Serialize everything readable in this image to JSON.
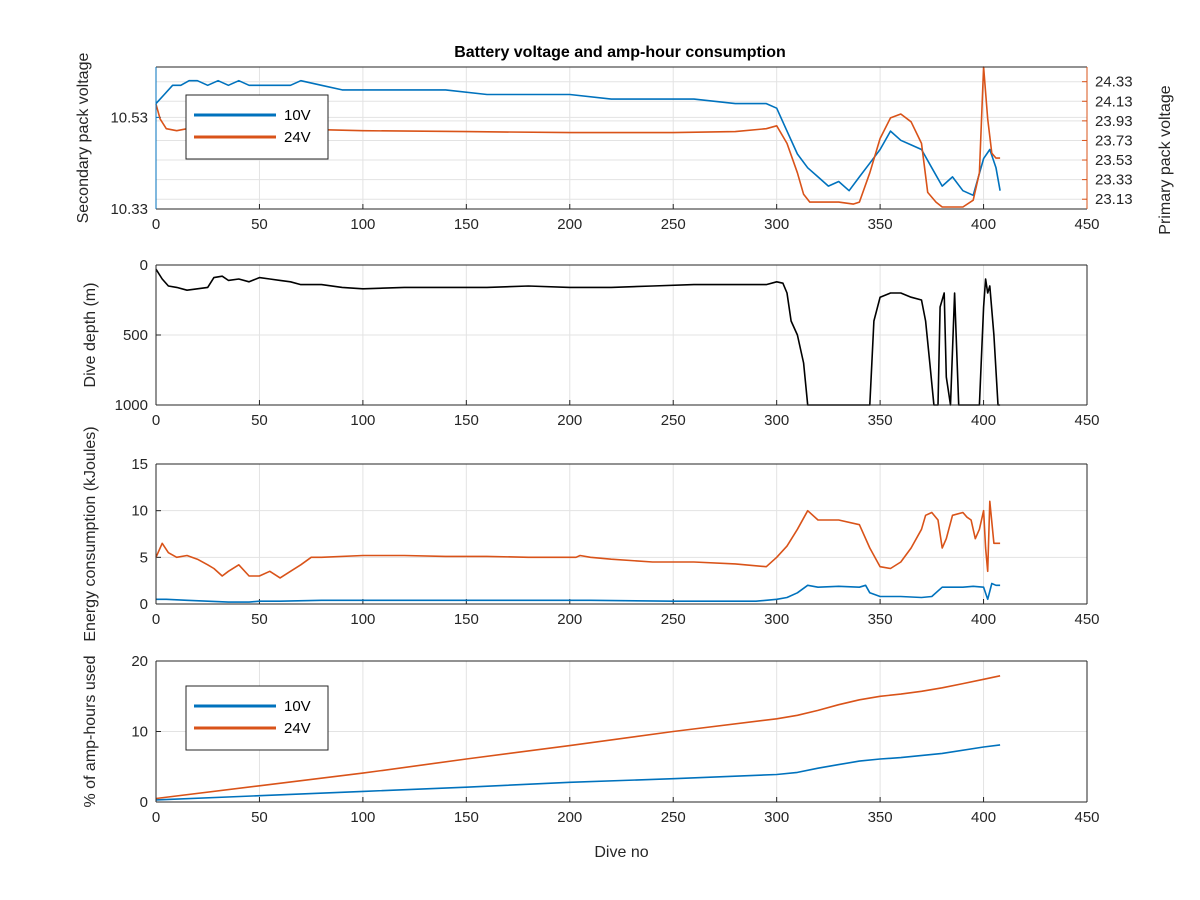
{
  "figure": {
    "title": "Battery voltage and amp-hour consumption",
    "colors": {
      "blue": "#0072BD",
      "orange": "#D95319",
      "black": "#000000",
      "grid": "#e3e3e3",
      "axis": "#262626"
    }
  },
  "chart_data": [
    {
      "type": "line",
      "title": "Battery voltage and amp-hour consumption",
      "xlabel": "",
      "ylabel": "Secondary pack voltage",
      "ylabel_right": "Primary pack voltage",
      "xlim": [
        0,
        450
      ],
      "ylim": [
        10.33,
        10.64
      ],
      "ylim_right": [
        23.03,
        24.48
      ],
      "x_ticks": [
        "0",
        "50",
        "100",
        "150",
        "200",
        "250",
        "300",
        "350",
        "400",
        "450"
      ],
      "y_ticks": [
        "10.33",
        "10.53"
      ],
      "y_ticks_right": [
        "23.13",
        "23.33",
        "23.53",
        "23.73",
        "23.93",
        "24.13",
        "24.33"
      ],
      "grid": true,
      "legend": "top-left",
      "series": [
        {
          "name": "10V",
          "axis": "left",
          "x": [
            0,
            4,
            8,
            12,
            16,
            20,
            25,
            30,
            35,
            40,
            45,
            50,
            55,
            60,
            65,
            70,
            80,
            90,
            100,
            120,
            140,
            160,
            180,
            200,
            220,
            240,
            260,
            280,
            295,
            300,
            305,
            310,
            315,
            320,
            325,
            330,
            335,
            340,
            345,
            350,
            355,
            360,
            365,
            370,
            375,
            380,
            385,
            390,
            395,
            400,
            403,
            406,
            408
          ],
          "y": [
            10.56,
            10.58,
            10.6,
            10.6,
            10.61,
            10.61,
            10.6,
            10.61,
            10.6,
            10.61,
            10.6,
            10.6,
            10.6,
            10.6,
            10.6,
            10.61,
            10.6,
            10.59,
            10.59,
            10.59,
            10.59,
            10.58,
            10.58,
            10.58,
            10.57,
            10.57,
            10.57,
            10.56,
            10.56,
            10.55,
            10.5,
            10.45,
            10.42,
            10.4,
            10.38,
            10.39,
            10.37,
            10.4,
            10.43,
            10.46,
            10.5,
            10.48,
            10.47,
            10.46,
            10.42,
            10.38,
            10.4,
            10.37,
            10.36,
            10.44,
            10.46,
            10.42,
            10.37
          ]
        },
        {
          "name": "24V",
          "axis": "right",
          "x": [
            0,
            2,
            5,
            10,
            20,
            30,
            40,
            50,
            60,
            80,
            100,
            150,
            200,
            250,
            280,
            295,
            300,
            305,
            310,
            313,
            316,
            320,
            330,
            337,
            340,
            345,
            350,
            355,
            360,
            365,
            370,
            373,
            377,
            380,
            385,
            390,
            395,
            398,
            400,
            402,
            404,
            406,
            408
          ],
          "y": [
            24.1,
            23.95,
            23.85,
            23.83,
            23.87,
            23.87,
            23.86,
            23.86,
            23.85,
            23.84,
            23.83,
            23.82,
            23.81,
            23.81,
            23.82,
            23.85,
            23.88,
            23.7,
            23.4,
            23.18,
            23.1,
            23.1,
            23.1,
            23.08,
            23.1,
            23.4,
            23.75,
            23.96,
            24.0,
            23.92,
            23.7,
            23.2,
            23.1,
            23.05,
            23.05,
            23.05,
            23.12,
            23.4,
            24.48,
            23.95,
            23.6,
            23.55,
            23.55
          ]
        }
      ]
    },
    {
      "type": "line",
      "xlabel": "",
      "ylabel": "Dive depth (m)",
      "xlim": [
        0,
        450
      ],
      "ylim": [
        0,
        1000
      ],
      "y_reversed": true,
      "x_ticks": [
        "0",
        "50",
        "100",
        "150",
        "200",
        "250",
        "300",
        "350",
        "400",
        "450"
      ],
      "y_ticks": [
        "0",
        "500",
        "1000"
      ],
      "grid": true,
      "series": [
        {
          "name": "",
          "x": [
            0,
            3,
            6,
            10,
            15,
            20,
            25,
            28,
            32,
            35,
            40,
            45,
            50,
            55,
            60,
            65,
            70,
            80,
            90,
            100,
            120,
            140,
            160,
            180,
            200,
            220,
            240,
            260,
            280,
            295,
            300,
            303,
            305,
            307,
            310,
            313,
            315,
            320,
            330,
            340,
            345,
            347,
            350,
            355,
            360,
            365,
            370,
            372,
            374,
            376,
            378,
            379,
            381,
            382,
            384,
            386,
            388,
            390,
            393,
            396,
            398,
            400,
            401,
            402,
            403,
            405,
            407,
            408
          ],
          "y": [
            30,
            100,
            150,
            160,
            180,
            170,
            160,
            90,
            80,
            110,
            100,
            120,
            90,
            100,
            110,
            120,
            140,
            140,
            160,
            170,
            160,
            160,
            160,
            150,
            160,
            160,
            150,
            140,
            140,
            140,
            120,
            130,
            200,
            400,
            500,
            700,
            1000,
            1000,
            1000,
            1000,
            1000,
            400,
            230,
            200,
            200,
            230,
            250,
            400,
            700,
            1000,
            1000,
            300,
            200,
            800,
            1000,
            200,
            1000,
            1000,
            1000,
            1000,
            1000,
            300,
            100,
            200,
            150,
            500,
            1000,
            1000
          ]
        }
      ]
    },
    {
      "type": "line",
      "xlabel": "",
      "ylabel": "Energy consumption (kJoules)",
      "xlim": [
        0,
        450
      ],
      "ylim": [
        0,
        15
      ],
      "x_ticks": [
        "0",
        "50",
        "100",
        "150",
        "200",
        "250",
        "300",
        "350",
        "400",
        "450"
      ],
      "y_ticks": [
        "0",
        "5",
        "10",
        "15"
      ],
      "grid": true,
      "series": [
        {
          "name": "10V",
          "color": "blue",
          "x": [
            0,
            5,
            15,
            25,
            35,
            42,
            45,
            50,
            60,
            80,
            100,
            150,
            200,
            203,
            205,
            210,
            250,
            290,
            300,
            305,
            310,
            315,
            320,
            330,
            340,
            343,
            345,
            350,
            360,
            370,
            375,
            380,
            390,
            395,
            400,
            402,
            404,
            406,
            408
          ],
          "y": [
            0.5,
            0.5,
            0.4,
            0.3,
            0.2,
            0.2,
            0.2,
            0.3,
            0.3,
            0.4,
            0.4,
            0.4,
            0.4,
            0.4,
            0.4,
            0.4,
            0.3,
            0.3,
            0.5,
            0.7,
            1.2,
            2.0,
            1.8,
            1.9,
            1.8,
            2.0,
            1.2,
            0.8,
            0.8,
            0.7,
            0.8,
            1.8,
            1.8,
            1.9,
            1.8,
            0.5,
            2.2,
            2.0,
            2.0
          ]
        },
        {
          "name": "24V",
          "color": "orange",
          "x": [
            0,
            3,
            6,
            10,
            15,
            20,
            25,
            28,
            32,
            35,
            40,
            45,
            50,
            55,
            60,
            65,
            70,
            75,
            80,
            100,
            120,
            140,
            160,
            180,
            200,
            203,
            205,
            210,
            220,
            240,
            260,
            280,
            295,
            300,
            305,
            310,
            315,
            320,
            330,
            340,
            345,
            350,
            355,
            360,
            365,
            370,
            372,
            375,
            378,
            380,
            382,
            385,
            390,
            392,
            394,
            396,
            398,
            400,
            401,
            402,
            403,
            405,
            408
          ],
          "y": [
            5,
            6.5,
            5.5,
            5,
            5.2,
            4.8,
            4.2,
            3.8,
            3.0,
            3.5,
            4.2,
            3.0,
            3.0,
            3.5,
            2.8,
            3.5,
            4.2,
            5.0,
            5.0,
            5.2,
            5.2,
            5.1,
            5.1,
            5.0,
            5.0,
            5.0,
            5.2,
            5.0,
            4.8,
            4.5,
            4.5,
            4.3,
            4.0,
            5.0,
            6.2,
            8.0,
            10.0,
            9.0,
            9.0,
            8.5,
            6.0,
            4.0,
            3.8,
            4.5,
            6.0,
            8.0,
            9.5,
            9.8,
            9.0,
            6.0,
            7.0,
            9.5,
            9.8,
            9.3,
            9.0,
            7.0,
            8.0,
            10.0,
            6.0,
            3.5,
            11.0,
            6.5,
            6.5
          ]
        }
      ]
    },
    {
      "type": "line",
      "xlabel": "Dive no",
      "ylabel": "% of amp-hours used",
      "xlim": [
        0,
        450
      ],
      "ylim": [
        0,
        20
      ],
      "x_ticks": [
        "0",
        "50",
        "100",
        "150",
        "200",
        "250",
        "300",
        "350",
        "400",
        "450"
      ],
      "y_ticks": [
        "0",
        "10",
        "20"
      ],
      "grid": true,
      "legend": "top-left",
      "series": [
        {
          "name": "10V",
          "color": "blue",
          "x": [
            0,
            50,
            100,
            150,
            200,
            250,
            300,
            310,
            320,
            330,
            340,
            350,
            360,
            380,
            400,
            408
          ],
          "y": [
            0.3,
            0.9,
            1.5,
            2.1,
            2.8,
            3.3,
            3.9,
            4.2,
            4.8,
            5.3,
            5.8,
            6.1,
            6.3,
            6.9,
            7.8,
            8.1
          ]
        },
        {
          "name": "24V",
          "color": "orange",
          "x": [
            0,
            50,
            100,
            150,
            200,
            250,
            300,
            310,
            320,
            330,
            340,
            350,
            360,
            370,
            380,
            390,
            400,
            408
          ],
          "y": [
            0.5,
            2.3,
            4.1,
            6.1,
            8.0,
            10.0,
            11.8,
            12.3,
            13.0,
            13.8,
            14.5,
            15.0,
            15.3,
            15.7,
            16.2,
            16.8,
            17.4,
            17.9
          ]
        }
      ]
    }
  ]
}
